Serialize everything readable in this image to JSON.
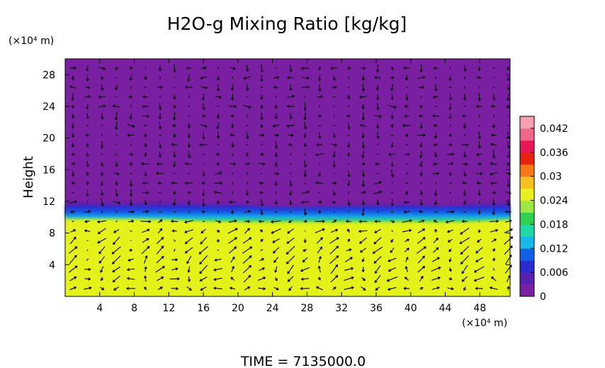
{
  "chart_data": {
    "type": "heatmap",
    "title": "H2O-g Mixing Ratio [kg/kg]",
    "ylabel": "Height",
    "y_unit": "(×10⁴ m)",
    "x_unit": "(×10⁴ m)",
    "xlim": [
      0,
      51.5
    ],
    "ylim": [
      0,
      30
    ],
    "x_ticks": [
      4,
      8,
      12,
      16,
      20,
      24,
      28,
      32,
      36,
      40,
      44,
      48
    ],
    "y_ticks": [
      4,
      8,
      12,
      16,
      20,
      24,
      28
    ],
    "colorbar": {
      "range": [
        0,
        0.045
      ],
      "ticks": [
        0,
        0.006,
        0.012,
        0.018,
        0.024,
        0.03,
        0.036,
        0.042
      ],
      "tick_labels": [
        "0",
        "0.006",
        "0.012",
        "0.018",
        "0.024",
        "0.03",
        "0.036",
        "0.042"
      ],
      "colors": [
        "#7a1fa2",
        "#5a1fb0",
        "#2a2ccf",
        "#1060e8",
        "#18b8e8",
        "#20d8a8",
        "#30d050",
        "#9ee640",
        "#e8f020",
        "#f8c020",
        "#f87818",
        "#e82010",
        "#e81858",
        "#f06888",
        "#f8a0b0"
      ]
    },
    "fields": {
      "upper_value": 0.0,
      "boundary_height": 10.5,
      "lower_value": 0.029,
      "boundary_profile_x": [
        0,
        4,
        8,
        12,
        16,
        20,
        24,
        28,
        32,
        36,
        40,
        44,
        48,
        51.5
      ],
      "boundary_profile_y": [
        11.0,
        11.0,
        11.0,
        10.9,
        10.7,
        10.6,
        10.3,
        10.3,
        10.4,
        10.5,
        10.6,
        10.4,
        10.7,
        10.9
      ]
    },
    "colors": {
      "upper_fill": "#7a1fa2",
      "lower_fill": "#e4f21a",
      "arrow": "#000000"
    }
  },
  "footer": {
    "time_label": "TIME = 7135000.0"
  }
}
